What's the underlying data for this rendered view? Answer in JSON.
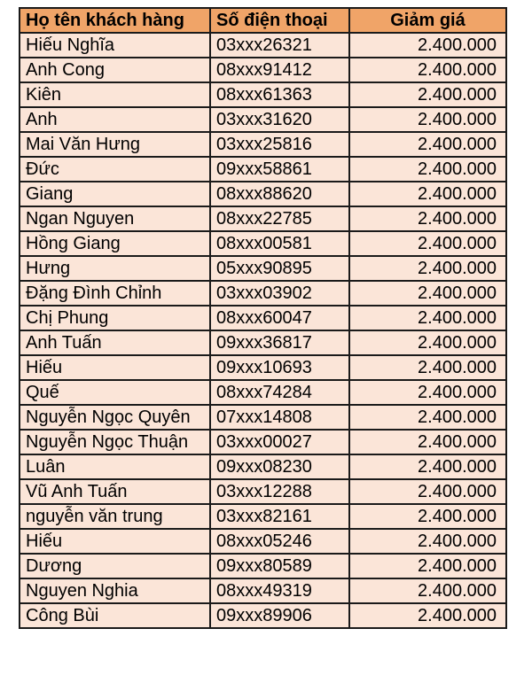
{
  "colors": {
    "header_bg": "#F0A468",
    "row_bg": "#FBE5D8",
    "border": "#1A1A1A"
  },
  "table": {
    "columns": [
      {
        "label": "Họ tên khách hàng"
      },
      {
        "label": "Số điện thoại"
      },
      {
        "label": "Giảm giá"
      }
    ],
    "rows": [
      {
        "name": "Hiếu Nghĩa",
        "phone": "03xxx26321",
        "discount": "2.400.000"
      },
      {
        "name": "Anh Cong",
        "phone": "08xxx91412",
        "discount": "2.400.000"
      },
      {
        "name": "Kiên",
        "phone": "08xxx61363",
        "discount": "2.400.000"
      },
      {
        "name": "Anh",
        "phone": "03xxx31620",
        "discount": "2.400.000"
      },
      {
        "name": "Mai Văn Hưng",
        "phone": "03xxx25816",
        "discount": "2.400.000"
      },
      {
        "name": "Đức",
        "phone": "09xxx58861",
        "discount": "2.400.000"
      },
      {
        "name": "Giang",
        "phone": "08xxx88620",
        "discount": "2.400.000"
      },
      {
        "name": "Ngan Nguyen",
        "phone": "08xxx22785",
        "discount": "2.400.000"
      },
      {
        "name": "Hồng Giang",
        "phone": "08xxx00581",
        "discount": "2.400.000"
      },
      {
        "name": "Hưng",
        "phone": "05xxx90895",
        "discount": "2.400.000"
      },
      {
        "name": "Đặng Đình Chỉnh",
        "phone": "03xxx03902",
        "discount": "2.400.000"
      },
      {
        "name": "Chị Phung",
        "phone": "08xxx60047",
        "discount": "2.400.000"
      },
      {
        "name": "Anh Tuấn",
        "phone": "09xxx36817",
        "discount": "2.400.000"
      },
      {
        "name": "Hiếu",
        "phone": "09xxx10693",
        "discount": "2.400.000"
      },
      {
        "name": "Quế",
        "phone": "08xxx74284",
        "discount": "2.400.000"
      },
      {
        "name": "Nguyễn Ngọc Quyên",
        "phone": "07xxx14808",
        "discount": "2.400.000"
      },
      {
        "name": "Nguyễn Ngọc Thuận",
        "phone": "03xxx00027",
        "discount": "2.400.000"
      },
      {
        "name": "Luân",
        "phone": "09xxx08230",
        "discount": "2.400.000"
      },
      {
        "name": "Vũ Anh Tuấn",
        "phone": "03xxx12288",
        "discount": "2.400.000"
      },
      {
        "name": "nguyễn văn trung",
        "phone": "03xxx82161",
        "discount": "2.400.000"
      },
      {
        "name": "Hiếu",
        "phone": "08xxx05246",
        "discount": "2.400.000"
      },
      {
        "name": "Dương",
        "phone": "09xxx80589",
        "discount": "2.400.000"
      },
      {
        "name": "Nguyen Nghia",
        "phone": "08xxx49319",
        "discount": "2.400.000"
      },
      {
        "name": "Công Bùi",
        "phone": "09xxx89906",
        "discount": "2.400.000"
      }
    ]
  }
}
